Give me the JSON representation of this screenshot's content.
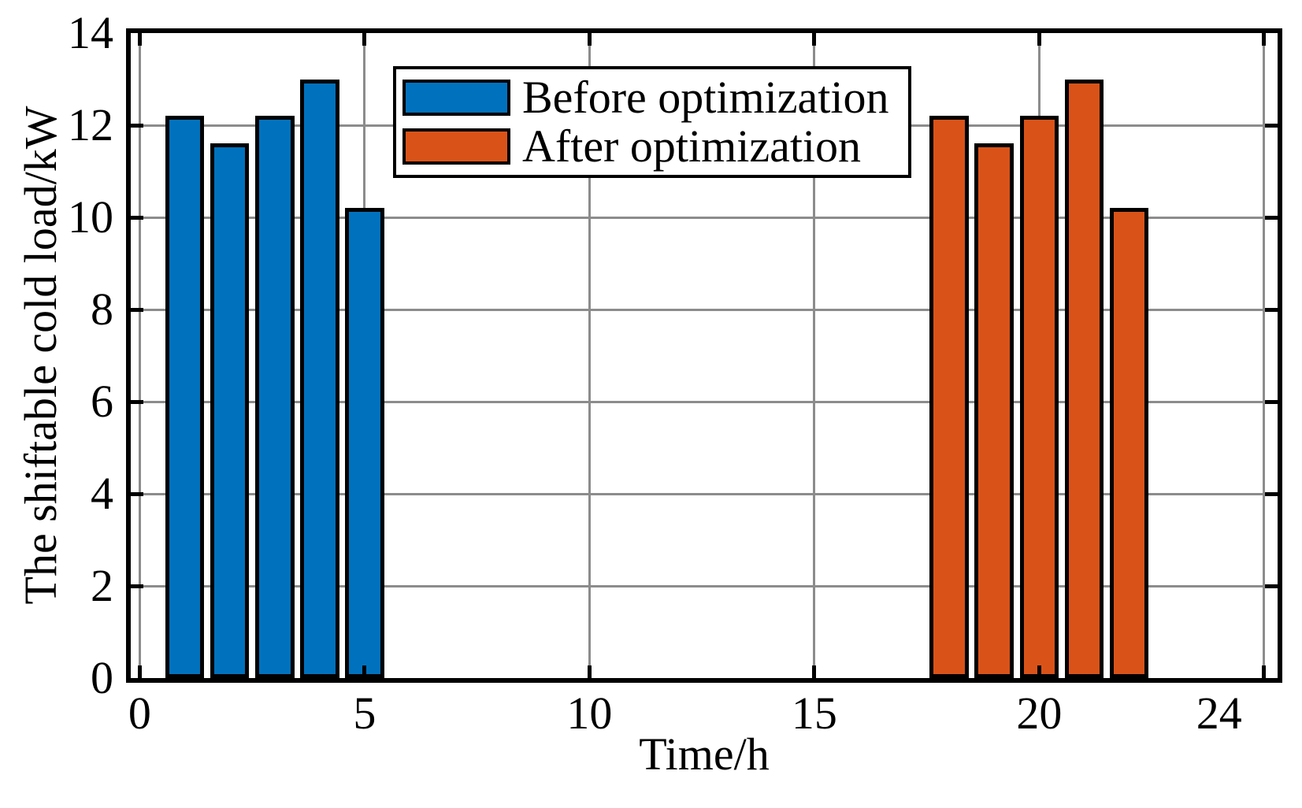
{
  "chart_data": {
    "type": "bar",
    "title": "",
    "xlabel": "Time/h",
    "ylabel": "The shiftable cold load/kW",
    "xlim": [
      -0.2,
      25.3
    ],
    "ylim": [
      0,
      14
    ],
    "bar_width": 0.8,
    "grid": true,
    "legend_position": "top-center-inside",
    "x_ticks": [
      {
        "v": 0,
        "label": "0"
      },
      {
        "v": 5,
        "label": "5"
      },
      {
        "v": 10,
        "label": "10"
      },
      {
        "v": 15,
        "label": "15"
      },
      {
        "v": 20,
        "label": "20"
      },
      {
        "v": 24,
        "label": "24"
      }
    ],
    "x_tick_marks": [
      0,
      5,
      10,
      15,
      20,
      25
    ],
    "y_ticks": [
      {
        "v": 0,
        "label": "0"
      },
      {
        "v": 2,
        "label": "2"
      },
      {
        "v": 4,
        "label": "4"
      },
      {
        "v": 6,
        "label": "6"
      },
      {
        "v": 8,
        "label": "8"
      },
      {
        "v": 10,
        "label": "10"
      },
      {
        "v": 12,
        "label": "12"
      },
      {
        "v": 14,
        "label": "14"
      }
    ],
    "y_grid": [
      2,
      4,
      6,
      8,
      10,
      12
    ],
    "series": [
      {
        "name": "Before optimization",
        "color": "#0072BD",
        "points": [
          {
            "x": 1,
            "y": 12.2
          },
          {
            "x": 2,
            "y": 11.6
          },
          {
            "x": 3,
            "y": 12.2
          },
          {
            "x": 4,
            "y": 13.0
          },
          {
            "x": 5,
            "y": 10.2
          }
        ]
      },
      {
        "name": "After optimization",
        "color": "#D95319",
        "points": [
          {
            "x": 18,
            "y": 12.2
          },
          {
            "x": 19,
            "y": 11.6
          },
          {
            "x": 20,
            "y": 12.2
          },
          {
            "x": 21,
            "y": 13.0
          },
          {
            "x": 22,
            "y": 10.2
          }
        ]
      }
    ],
    "colors": {
      "grid": "#8C8C8C",
      "axis": "#000000",
      "background": "#FFFFFF"
    }
  }
}
